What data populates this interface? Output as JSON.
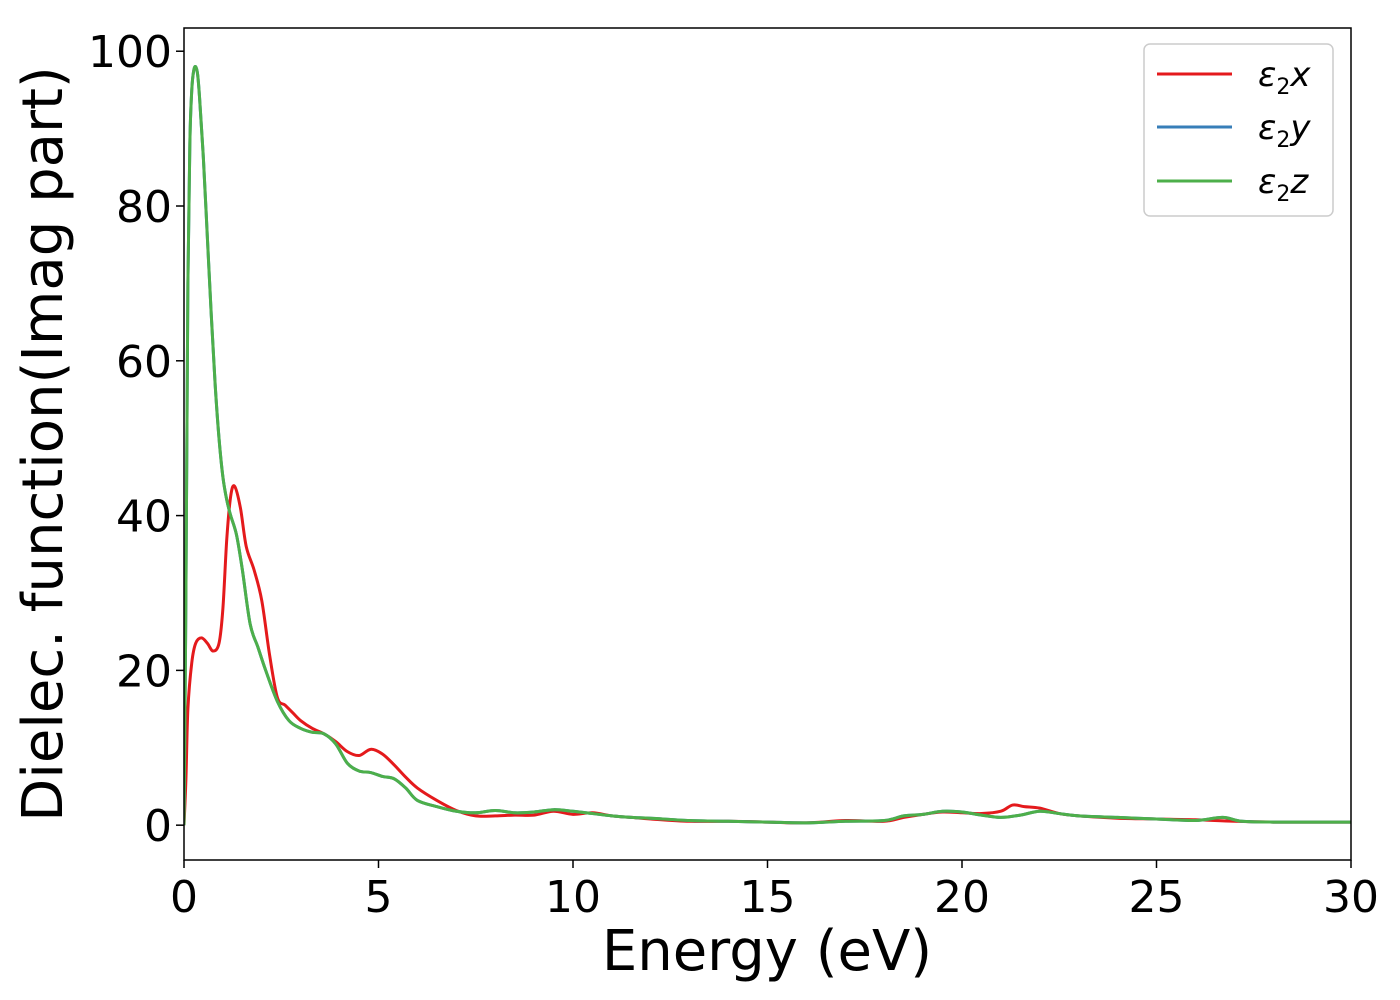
{
  "chart_data": {
    "type": "line",
    "title": "",
    "xlabel": "Energy (eV)",
    "ylabel": "Dielec. function(Imag part)",
    "xlim": [
      0,
      30
    ],
    "ylim": [
      -4.5,
      103
    ],
    "xticks": [
      0,
      5,
      10,
      15,
      20,
      25,
      30
    ],
    "yticks": [
      0,
      20,
      40,
      60,
      80,
      100
    ],
    "grid": false,
    "legend_position": "top-right",
    "series": [
      {
        "name": "ε₂x",
        "legend_base": "ε",
        "legend_sub": "2",
        "legend_var": "x",
        "color": "#e41a1c",
        "x": [
          0,
          0.05,
          0.1,
          0.2,
          0.3,
          0.45,
          0.6,
          0.75,
          0.9,
          1.0,
          1.1,
          1.2,
          1.3,
          1.45,
          1.6,
          1.8,
          2.0,
          2.2,
          2.4,
          2.6,
          2.8,
          3.0,
          3.3,
          3.6,
          3.9,
          4.2,
          4.5,
          4.8,
          5.1,
          5.4,
          5.7,
          6.0,
          6.5,
          7.0,
          7.5,
          8.0,
          8.5,
          9.0,
          9.5,
          10.0,
          10.5,
          11.0,
          11.5,
          12.0,
          13.0,
          14.0,
          15.0,
          16.0,
          17.0,
          18.0,
          18.5,
          19.0,
          19.5,
          20.0,
          20.5,
          21.0,
          21.3,
          21.6,
          22.0,
          22.5,
          23.0,
          24.0,
          25.0,
          26.0,
          27.0,
          28.0,
          29.0,
          30.0
        ],
        "values": [
          0,
          6,
          15,
          21,
          23.5,
          24.2,
          23.5,
          22.5,
          23.5,
          28,
          37,
          42.5,
          43.8,
          41,
          36,
          33,
          29,
          22,
          16.5,
          15.5,
          14.5,
          13.5,
          12.5,
          11.8,
          10.8,
          9.5,
          9.0,
          9.8,
          9.2,
          7.8,
          6.2,
          4.8,
          3.2,
          1.9,
          1.2,
          1.2,
          1.3,
          1.3,
          1.8,
          1.4,
          1.6,
          1.2,
          1.0,
          0.8,
          0.5,
          0.5,
          0.4,
          0.3,
          0.6,
          0.5,
          1.0,
          1.4,
          1.7,
          1.6,
          1.5,
          1.8,
          2.6,
          2.4,
          2.2,
          1.5,
          1.2,
          0.9,
          0.8,
          0.7,
          0.5,
          0.4,
          0.4,
          0.4
        ]
      },
      {
        "name": "ε₂y",
        "legend_base": "ε",
        "legend_sub": "2",
        "legend_var": "y",
        "color": "#377eb8",
        "x": [
          0,
          0.05,
          0.1,
          0.15,
          0.2,
          0.25,
          0.3,
          0.35,
          0.4,
          0.5,
          0.6,
          0.7,
          0.8,
          0.9,
          1.0,
          1.1,
          1.2,
          1.35,
          1.5,
          1.7,
          1.9,
          2.1,
          2.4,
          2.7,
          3.0,
          3.3,
          3.6,
          3.9,
          4.2,
          4.5,
          4.8,
          5.1,
          5.4,
          5.7,
          6.0,
          6.5,
          7.0,
          7.5,
          8.0,
          8.5,
          9.0,
          9.5,
          10.0,
          10.5,
          11.0,
          11.5,
          12.0,
          13.0,
          14.0,
          15.0,
          16.0,
          17.0,
          18.0,
          18.5,
          19.0,
          19.5,
          20.0,
          20.5,
          21.0,
          21.5,
          22.0,
          22.5,
          23.0,
          24.0,
          25.0,
          26.0,
          26.7,
          27.2,
          28.0,
          29.0,
          30.0
        ],
        "values": [
          0,
          30,
          70,
          88,
          95,
          97.5,
          98,
          97,
          94,
          86,
          76,
          66,
          57,
          50,
          45,
          42,
          40,
          37.5,
          33,
          26,
          23,
          20,
          16,
          13.5,
          12.5,
          12,
          11.8,
          10.5,
          8.0,
          7.0,
          6.8,
          6.3,
          6.0,
          4.8,
          3.2,
          2.4,
          1.8,
          1.6,
          1.9,
          1.6,
          1.7,
          2.0,
          1.8,
          1.5,
          1.2,
          1.0,
          0.9,
          0.6,
          0.5,
          0.4,
          0.3,
          0.5,
          0.6,
          1.2,
          1.4,
          1.8,
          1.7,
          1.3,
          1.0,
          1.3,
          1.8,
          1.5,
          1.2,
          1.0,
          0.8,
          0.6,
          1.0,
          0.5,
          0.4,
          0.4,
          0.4
        ]
      },
      {
        "name": "ε₂z",
        "legend_base": "ε",
        "legend_sub": "2",
        "legend_var": "z",
        "color": "#4daf4a",
        "x": [
          0,
          0.05,
          0.1,
          0.15,
          0.2,
          0.25,
          0.3,
          0.35,
          0.4,
          0.5,
          0.6,
          0.7,
          0.8,
          0.9,
          1.0,
          1.1,
          1.2,
          1.35,
          1.5,
          1.7,
          1.9,
          2.1,
          2.4,
          2.7,
          3.0,
          3.3,
          3.6,
          3.9,
          4.2,
          4.5,
          4.8,
          5.1,
          5.4,
          5.7,
          6.0,
          6.5,
          7.0,
          7.5,
          8.0,
          8.5,
          9.0,
          9.5,
          10.0,
          10.5,
          11.0,
          11.5,
          12.0,
          13.0,
          14.0,
          15.0,
          16.0,
          17.0,
          18.0,
          18.5,
          19.0,
          19.5,
          20.0,
          20.5,
          21.0,
          21.5,
          22.0,
          22.5,
          23.0,
          24.0,
          25.0,
          26.0,
          26.7,
          27.2,
          28.0,
          29.0,
          30.0
        ],
        "values": [
          0,
          30,
          70,
          88,
          95,
          97.5,
          98,
          97,
          94,
          86,
          76,
          66,
          57,
          50,
          45,
          42,
          40,
          37.5,
          33,
          26,
          23,
          20,
          16,
          13.5,
          12.5,
          12,
          11.8,
          10.5,
          8.0,
          7.0,
          6.8,
          6.3,
          6.0,
          4.8,
          3.2,
          2.4,
          1.8,
          1.6,
          1.9,
          1.6,
          1.7,
          2.0,
          1.8,
          1.5,
          1.2,
          1.0,
          0.9,
          0.6,
          0.5,
          0.4,
          0.3,
          0.5,
          0.6,
          1.2,
          1.4,
          1.8,
          1.7,
          1.3,
          1.0,
          1.3,
          1.8,
          1.5,
          1.2,
          1.0,
          0.8,
          0.6,
          1.0,
          0.5,
          0.4,
          0.4,
          0.4
        ]
      }
    ]
  }
}
